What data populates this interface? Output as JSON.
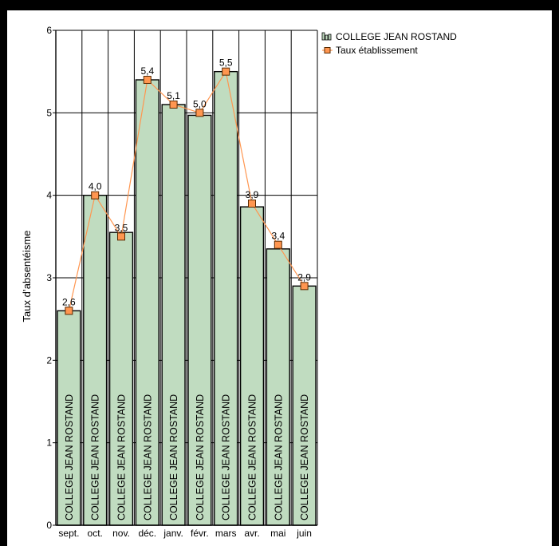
{
  "chart_data": {
    "type": "bar",
    "title": "",
    "xlabel": "",
    "ylabel": "Taux d’absentéisme",
    "ylim": [
      0,
      6
    ],
    "yticks": [
      0,
      1,
      2,
      3,
      4,
      5,
      6
    ],
    "grid": true,
    "legend_position": "top-right",
    "categories": [
      "sept.",
      "oct.",
      "nov.",
      "déc.",
      "janv.",
      "févr.",
      "mars",
      "avr.",
      "mai",
      "juin"
    ],
    "series": [
      {
        "name": "COLLEGE JEAN ROSTAND",
        "type": "bar",
        "color": "#c0dcc0",
        "values": [
          2.6,
          4.0,
          3.55,
          5.4,
          5.1,
          4.97,
          5.5,
          3.86,
          3.35,
          2.9
        ],
        "bar_label": "COLLEGE JEAN ROSTAND"
      },
      {
        "name": "Taux établissement",
        "type": "line",
        "color": "#ff9650",
        "values": [
          2.6,
          4.0,
          3.5,
          5.4,
          5.1,
          5.0,
          5.5,
          3.9,
          3.4,
          2.9
        ],
        "data_labels": [
          "2,6",
          "4,0",
          "3,5",
          "5,4",
          "5,1",
          "5,0",
          "5,5",
          "3,9",
          "3,4",
          "2,9"
        ]
      }
    ]
  }
}
